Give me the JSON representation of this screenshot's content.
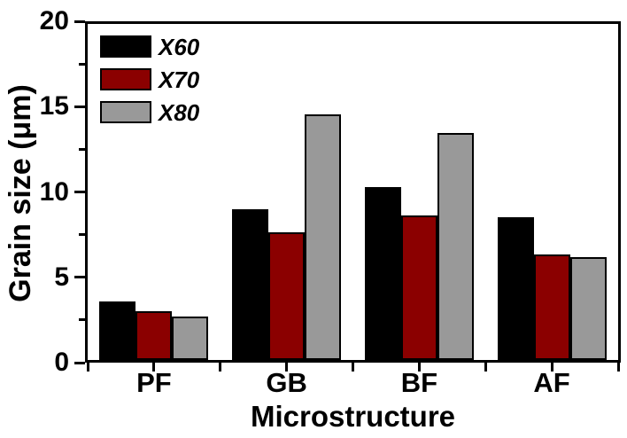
{
  "chart_data": {
    "type": "bar",
    "title": "",
    "xlabel": "Microstructure",
    "ylabel": "Grain size (μm)",
    "categories": [
      "PF",
      "GB",
      "BF",
      "AF"
    ],
    "series": [
      {
        "name": "X60",
        "color": "#000000",
        "values": [
          3.5,
          9.0,
          10.3,
          8.5
        ]
      },
      {
        "name": "X70",
        "color": "#8b0000",
        "values": [
          2.9,
          7.6,
          8.6,
          6.3
        ]
      },
      {
        "name": "X80",
        "color": "#999999",
        "values": [
          2.6,
          14.6,
          13.5,
          6.1
        ]
      }
    ],
    "ylim": [
      0,
      20
    ],
    "yticks_major": [
      0,
      5,
      10,
      15,
      20
    ],
    "yticks_minor": [
      2.5,
      7.5,
      12.5,
      17.5
    ],
    "ytick_labels": [
      "0",
      "5",
      "10",
      "15",
      "20"
    ],
    "grid": false,
    "legend": {
      "position": "top-left",
      "frame": false,
      "entries": [
        "X60",
        "X70",
        "X80"
      ]
    },
    "axis_color": "#000000",
    "bar_edge_color": "#000000",
    "background": "#ffffff"
  }
}
